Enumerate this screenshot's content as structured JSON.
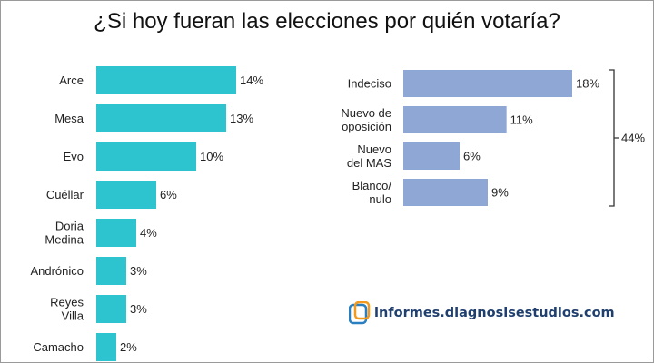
{
  "title": "¿Si hoy fueran las elecciones por quién votaría?",
  "watermark": {
    "url": "informes.diagnosisestudios.com",
    "logo_icon": "diagnosis-logo"
  },
  "chart_data": [
    {
      "type": "bar",
      "orientation": "horizontal",
      "color": "#2EC4CF",
      "categories": [
        [
          "Arce"
        ],
        [
          "Mesa"
        ],
        [
          "Evo"
        ],
        [
          "Cuéllar"
        ],
        [
          "Doria",
          "Medina"
        ],
        [
          "Andrónico"
        ],
        [
          "Reyes",
          "Villa"
        ],
        [
          "Camacho"
        ]
      ],
      "values": [
        14,
        13,
        10,
        6,
        4,
        3,
        3,
        2
      ],
      "labels": [
        "14%",
        "13%",
        "10%",
        "6%",
        "4%",
        "3%",
        "3%",
        "2%"
      ],
      "unit": "%",
      "xlim": [
        0,
        20
      ]
    },
    {
      "type": "bar",
      "orientation": "horizontal",
      "color": "#8FA7D4",
      "categories": [
        [
          "Indeciso"
        ],
        [
          "Nuevo de",
          "oposición"
        ],
        [
          "Nuevo",
          "del MAS"
        ],
        [
          "Blanco/",
          "nulo"
        ]
      ],
      "values": [
        18,
        11,
        6,
        9
      ],
      "labels": [
        "18%",
        "11%",
        "6%",
        "9%"
      ],
      "unit": "%",
      "xlim": [
        0,
        20
      ],
      "bracket_label": "44%"
    }
  ]
}
